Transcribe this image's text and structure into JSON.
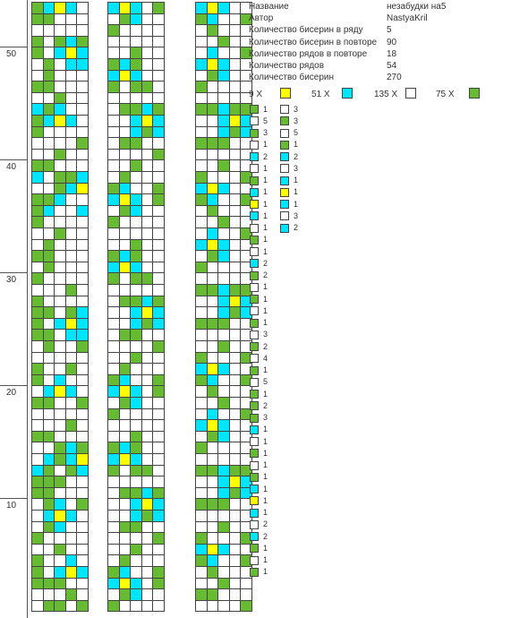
{
  "colors": {
    "yellow": "#ffff00",
    "cyan": "#00e5ff",
    "white": "#ffffff",
    "green": "#66bb33"
  },
  "ruler": {
    "labels": [
      "50",
      "40",
      "30",
      "20",
      "10"
    ]
  },
  "info": [
    {
      "key": "Название",
      "value": "незабудки на5"
    },
    {
      "key": "Автор",
      "value": "NastyaKril"
    },
    {
      "key": "Количество бисерин в ряду",
      "value": "5"
    },
    {
      "key": "Количество бисерин в повторе",
      "value": "90"
    },
    {
      "key": "Количество рядов в повторе",
      "value": "18"
    },
    {
      "key": "Количество рядов",
      "value": "54"
    },
    {
      "key": "Количество бисерин",
      "value": "270"
    }
  ],
  "legend": [
    {
      "label": "9 X",
      "color": "yellow"
    },
    {
      "label": "51 X",
      "color": "cyan"
    },
    {
      "label": "135 X",
      "color": "white"
    },
    {
      "label": "75 X",
      "color": "green"
    }
  ],
  "sequence_col1": [
    {
      "color": "green",
      "count": "1"
    },
    {
      "color": "white",
      "count": "5"
    },
    {
      "color": "green",
      "count": "3"
    },
    {
      "color": "white",
      "count": "1"
    },
    {
      "color": "cyan",
      "count": "2"
    },
    {
      "color": "white",
      "count": "1"
    },
    {
      "color": "green",
      "count": "1"
    },
    {
      "color": "cyan",
      "count": "1"
    },
    {
      "color": "yellow",
      "count": "1"
    },
    {
      "color": "cyan",
      "count": "1"
    },
    {
      "color": "white",
      "count": "1"
    },
    {
      "color": "green",
      "count": "1"
    },
    {
      "color": "white",
      "count": "1"
    },
    {
      "color": "cyan",
      "count": "2"
    },
    {
      "color": "green",
      "count": "2"
    },
    {
      "color": "white",
      "count": "1"
    },
    {
      "color": "green",
      "count": "1"
    },
    {
      "color": "white",
      "count": "1"
    },
    {
      "color": "green",
      "count": "1"
    },
    {
      "color": "white",
      "count": "3"
    },
    {
      "color": "green",
      "count": "2"
    },
    {
      "color": "white",
      "count": "4"
    },
    {
      "color": "green",
      "count": "1"
    },
    {
      "color": "white",
      "count": "5"
    },
    {
      "color": "green",
      "count": "1"
    },
    {
      "color": "green",
      "count": "2"
    },
    {
      "color": "green",
      "count": "3"
    },
    {
      "color": "cyan",
      "count": "1"
    },
    {
      "color": "white",
      "count": "1"
    },
    {
      "color": "green",
      "count": "1"
    },
    {
      "color": "white",
      "count": "1"
    },
    {
      "color": "green",
      "count": "1"
    },
    {
      "color": "cyan",
      "count": "1"
    },
    {
      "color": "yellow",
      "count": "1"
    },
    {
      "color": "cyan",
      "count": "1"
    },
    {
      "color": "white",
      "count": "2"
    },
    {
      "color": "cyan",
      "count": "2"
    },
    {
      "color": "green",
      "count": "1"
    },
    {
      "color": "white",
      "count": "1"
    },
    {
      "color": "green",
      "count": "1"
    }
  ],
  "sequence_col2": [
    {
      "color": "white",
      "count": "3"
    },
    {
      "color": "green",
      "count": "3"
    },
    {
      "color": "white",
      "count": "5"
    },
    {
      "color": "green",
      "count": "1"
    },
    {
      "color": "cyan",
      "count": "2"
    },
    {
      "color": "white",
      "count": "3"
    },
    {
      "color": "cyan",
      "count": "1"
    },
    {
      "color": "yellow",
      "count": "1"
    },
    {
      "color": "cyan",
      "count": "1"
    },
    {
      "color": "white",
      "count": "3"
    },
    {
      "color": "cyan",
      "count": "2"
    }
  ],
  "patterns": {
    "left": [
      "WGGWG",
      "WWWGW",
      "GGGWW",
      "GWCYC",
      "GWWCW",
      "WWGWW",
      "GWWWW",
      "WGCWW",
      "WCYCW",
      "WGCWG",
      "GGWWW",
      "GGGWW",
      "CGWGC",
      "WCGCY",
      "WWGCG",
      "GGWWW",
      "WWWGW",
      "WWWWW",
      "GGWWG",
      "WCYCW",
      "GWCWW",
      "GWWGW",
      "WWWWW",
      "WGWWG",
      "GGWCC",
      "GWCYC",
      "GGWGC",
      "GWWWW",
      "WWWGW",
      "GWWWW",
      "WGWWW",
      "GGWWW",
      "WGWWW",
      "WWGWW",
      "GWWWW",
      "GCWWC",
      "GGCWW",
      "WWGCY",
      "CWGGC",
      "GGWWW",
      "WWGWW",
      "WWWWG",
      "GWWWW",
      "GCYCW",
      "CGCWW",
      "WWGWW",
      "GGWWW",
      "WGWWW",
      "WGWCC",
      "GWCYC",
      "GWGCG",
      "WWWWW",
      "GGWWW",
      "GCYCW"
    ],
    "middle": [
      "GWWWW",
      "WGCWW",
      "CYCWG",
      "GCWWG",
      "WGWWW",
      "WWGWW",
      "WWWWG",
      "WGGWW",
      "WWCGC",
      "WWCYC",
      "WGGCG",
      "WWWWW",
      "GWGGW",
      "CYCWW",
      "GCGWW",
      "WWGWW",
      "WWWWW",
      "GWWWW",
      "WGCWW",
      "CYCWG",
      "GCWWG",
      "WGWWW",
      "WWGWW",
      "WWWWG",
      "WGGWW",
      "WWCGC",
      "WWCYC",
      "WGGCG",
      "WWWWW",
      "GWGGW",
      "CYCWW",
      "GCGWW",
      "WWGWW",
      "WWWWW",
      "GWWWW",
      "WGCWW",
      "CYCWG",
      "GCWWG",
      "WGWWW",
      "WWGWW",
      "WWWWG",
      "WGGWW",
      "WWCGC",
      "WWCYC",
      "WGGCG",
      "WWWWW",
      "GWGGW",
      "CYCWW",
      "GCGWW",
      "WWGWW",
      "WWWWW",
      "GWWWW",
      "WGCWW",
      "CYCWG"
    ],
    "right": [
      "WWWWG",
      "GGWWW",
      "WWGWW",
      "WGWWW",
      "GCWWG",
      "CYCWW",
      "GWWWG",
      "WWGWW",
      "WWWWW",
      "GGGWW",
      "WWCGC",
      "WWCYC",
      "GGCGG",
      "WWWWW",
      "GWWWW",
      "WGCWW",
      "CYCWW",
      "WCWWG",
      "WWGWW",
      "WGWWW",
      "GCWWG",
      "CYCWW",
      "GWWWG",
      "WWGWW",
      "WWWWW",
      "GGGWW",
      "WWCGC",
      "WWCYC",
      "GGCGG",
      "WWWWW",
      "GWWWW",
      "WGCWW",
      "CYCWW",
      "WCWWG",
      "WWGWW",
      "WGWWW",
      "GCWWG",
      "CYCWW",
      "GWWWG",
      "WWGWW",
      "WWWWW",
      "GGGWW",
      "WWCGC",
      "WWCYC",
      "GGCGG",
      "WWWWW",
      "GWWWW",
      "WGCWW",
      "CYCWW",
      "WCWWG",
      "WWGWW",
      "WGWWW",
      "GCWWG",
      "CYCWW"
    ]
  }
}
